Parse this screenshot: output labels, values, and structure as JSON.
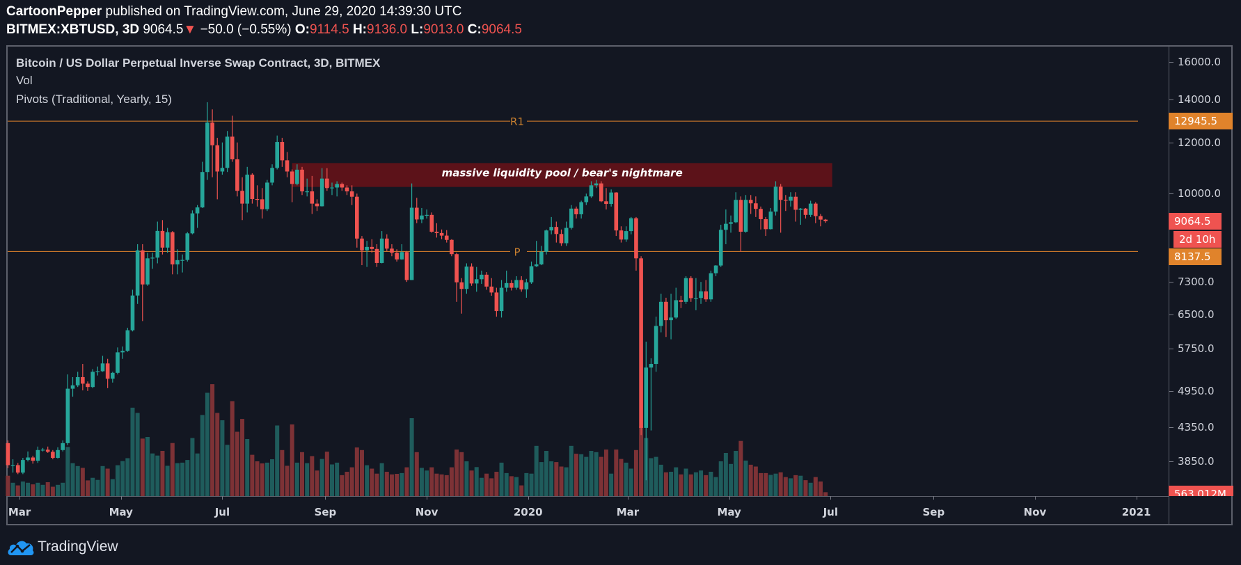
{
  "header": {
    "author": "CartoonPepper",
    "published": "published on TradingView.com, June 29, 2020 14:39:30 UTC",
    "symbol": "BITMEX:XBTUSD, 3D",
    "last": "9064.5",
    "change_arrow": "▼",
    "change": "−50.0 (−0.55%)",
    "o_label": "O:",
    "o": "9114.5",
    "h_label": "H:",
    "h": "9136.0",
    "l_label": "L:",
    "l": "9013.0",
    "c_label": "C:",
    "c": "9064.5"
  },
  "legend": {
    "title": "Bitcoin / US Dollar Perpetual Inverse Swap Contract, 3D, BITMEX",
    "vol": "Vol",
    "pivots": "Pivots (Traditional, Yearly, 15)"
  },
  "badges": {
    "r1": "12945.5",
    "last": "9064.5",
    "countdown": "2d 10h",
    "p": "8137.5",
    "volume": "563.012M"
  },
  "footer": {
    "brand": "TradingView"
  },
  "colors": {
    "background": "#131722",
    "up": "#26a69a",
    "down": "#ef5350",
    "up_volume": "#1f5c5c",
    "down_volume": "#7d3236",
    "pivot": "#e0832b",
    "zone": "#5c1219",
    "logo": "#2196f3"
  },
  "chart_data": {
    "type": "candlestick",
    "interval": "3D",
    "start": "2019-02-22",
    "y_scale": "log",
    "ylim": [
      3500,
      16500
    ],
    "y_ticks": [
      "16000.0",
      "14000.0",
      "12000.0",
      "10000.0",
      "7300.0",
      "6500.0",
      "5750.0",
      "4950.0",
      "4350.0",
      "3850.0"
    ],
    "x_ticks": [
      {
        "label": "Mar",
        "date": "2019-03-01"
      },
      {
        "label": "May",
        "date": "2019-05-01"
      },
      {
        "label": "Jul",
        "date": "2019-07-01"
      },
      {
        "label": "Sep",
        "date": "2019-09-01"
      },
      {
        "label": "Nov",
        "date": "2019-11-01"
      },
      {
        "label": "2020",
        "date": "2020-01-01"
      },
      {
        "label": "Mar",
        "date": "2020-03-01"
      },
      {
        "label": "May",
        "date": "2020-05-01"
      },
      {
        "label": "Jul",
        "date": "2020-07-01"
      },
      {
        "label": "Sep",
        "date": "2020-09-01"
      },
      {
        "label": "Nov",
        "date": "2020-11-01"
      },
      {
        "label": "2021",
        "date": "2021-01-01"
      }
    ],
    "first_open": 4110,
    "close": [
      3800,
      3800,
      3700,
      3870,
      3905,
      3860,
      4010,
      4015,
      3985,
      3900,
      4010,
      4110,
      4990,
      5050,
      5200,
      5080,
      5020,
      5300,
      5310,
      5460,
      5170,
      5280,
      5680,
      5710,
      6145,
      6955,
      8170,
      7235,
      7940,
      7960,
      8755,
      8250,
      8715,
      7770,
      7890,
      7895,
      8680,
      9320,
      9520,
      10800,
      12880,
      11880,
      10820,
      10960,
      12250,
      11300,
      10100,
      9650,
      10700,
      9810,
      9800,
      9460,
      10400,
      10960,
      12020,
      11260,
      10820,
      10350,
      10890,
      10080,
      10080,
      9650,
      9560,
      10550,
      10200,
      10220,
      10350,
      10220,
      10080,
      9890,
      8520,
      8170,
      8270,
      8210,
      7810,
      8520,
      8220,
      8100,
      7910,
      8120,
      7350,
      9510,
      9120,
      9250,
      9270,
      8730,
      8690,
      8610,
      8480,
      8060,
      7290,
      7120,
      7710,
      7260,
      7370,
      7490,
      7180,
      7030,
      6580,
      7150,
      7270,
      7150,
      7350,
      7110,
      7290,
      7720,
      7770,
      8130,
      8770,
      8880,
      8660,
      8380,
      8850,
      9480,
      9290,
      9700,
      9900,
      10300,
      10370,
      9730,
      9640,
      10040,
      8770,
      8490,
      8750,
      9160,
      7940,
      4340,
      5380,
      5450,
      6240,
      6800,
      6370,
      6430,
      6840,
      6800,
      7400,
      6890,
      6895,
      7060,
      6860,
      7530,
      7740,
      8790,
      8980,
      9030,
      9780,
      8730,
      9780,
      9660,
      9470,
      9130,
      8810,
      9380,
      10250,
      9780,
      9750,
      9890,
      9440,
      9480,
      9270,
      9650,
      9230,
      9114.5,
      9064.5
    ],
    "high": [
      4150,
      3880,
      3830,
      3900,
      3990,
      3930,
      4060,
      4040,
      4060,
      4010,
      4050,
      4150,
      5250,
      5200,
      5300,
      5450,
      5120,
      5350,
      5400,
      5610,
      5550,
      5300,
      5780,
      5800,
      6200,
      7100,
      8350,
      8350,
      8100,
      8100,
      9050,
      9100,
      8850,
      8750,
      8200,
      8050,
      8720,
      9420,
      9600,
      11200,
      13850,
      13500,
      12200,
      12000,
      12500,
      13200,
      12000,
      10600,
      11000,
      10750,
      10300,
      10200,
      10500,
      11100,
      12300,
      12200,
      11600,
      10900,
      11100,
      11000,
      10550,
      10650,
      9800,
      10950,
      10950,
      10400,
      10450,
      10400,
      10300,
      10300,
      10000,
      8600,
      8450,
      8500,
      8350,
      8750,
      8650,
      8350,
      8200,
      8350,
      8150,
      10370,
      9850,
      9500,
      9450,
      9350,
      9000,
      8800,
      8780,
      8500,
      8100,
      7400,
      7800,
      7800,
      7700,
      7600,
      7560,
      7400,
      7150,
      7350,
      7600,
      7350,
      7450,
      7450,
      7380,
      7850,
      8450,
      8300,
      8800,
      9200,
      9050,
      8800,
      9050,
      9600,
      9550,
      9750,
      10000,
      10450,
      10500,
      10450,
      10200,
      10150,
      10050,
      8900,
      8900,
      9200,
      9200,
      8000,
      5900,
      5560,
      6450,
      7000,
      6900,
      7000,
      7150,
      6950,
      7450,
      7450,
      7400,
      7300,
      7350,
      7600,
      7750,
      8950,
      9450,
      9250,
      10050,
      9900,
      9950,
      9950,
      9900,
      9550,
      9200,
      9500,
      10450,
      10350,
      9950,
      10050,
      10050,
      9500,
      9500,
      9750,
      9700,
      9300,
      9136
    ],
    "low": [
      3760,
      3700,
      3680,
      3680,
      3850,
      3820,
      3830,
      3990,
      3970,
      3880,
      3890,
      3990,
      4080,
      4850,
      5020,
      4960,
      4950,
      5000,
      5230,
      5300,
      5000,
      5100,
      5250,
      5550,
      5690,
      6120,
      6750,
      6350,
      7200,
      7650,
      7800,
      8050,
      8100,
      7500,
      7500,
      7550,
      7850,
      8650,
      8850,
      9500,
      10500,
      10600,
      9800,
      10700,
      10800,
      11200,
      9900,
      9100,
      9350,
      9650,
      9550,
      9150,
      9400,
      10300,
      10900,
      11000,
      10600,
      9700,
      10300,
      9950,
      9900,
      9300,
      9400,
      9550,
      10100,
      9950,
      9900,
      10100,
      9950,
      9600,
      8250,
      7750,
      7700,
      8100,
      7700,
      7800,
      8150,
      8000,
      7850,
      7900,
      7300,
      7350,
      9000,
      9000,
      9150,
      8700,
      8550,
      8500,
      8400,
      8000,
      6800,
      6520,
      7000,
      7200,
      7050,
      7250,
      7100,
      6950,
      6450,
      6430,
      7050,
      7080,
      7100,
      7050,
      6900,
      7250,
      7700,
      7750,
      8050,
      8650,
      8400,
      8300,
      8300,
      8800,
      9150,
      9150,
      9600,
      9850,
      10200,
      9700,
      9450,
      9550,
      8600,
      8400,
      8420,
      8650,
      7600,
      4230,
      3600,
      4300,
      5300,
      6100,
      6000,
      5950,
      6400,
      6650,
      6750,
      6800,
      6600,
      6750,
      6800,
      6800,
      7450,
      7700,
      8350,
      8700,
      9000,
      8130,
      8700,
      9300,
      9200,
      8800,
      8600,
      8800,
      9250,
      8700,
      9400,
      9550,
      9050,
      8950,
      9150,
      9200,
      9000,
      8900,
      9013
    ],
    "volume_unit": "M",
    "volume": [
      2930,
      1920,
      1540,
      2100,
      1920,
      1690,
      1920,
      1620,
      2000,
      1350,
      1620,
      1920,
      7070,
      4740,
      4320,
      4060,
      2260,
      2630,
      2330,
      4320,
      3950,
      2440,
      4440,
      5040,
      5450,
      12710,
      11960,
      8270,
      8500,
      6130,
      5830,
      6500,
      4360,
      7630,
      4740,
      4810,
      5190,
      8350,
      6130,
      11660,
      14850,
      16090,
      11960,
      10900,
      7370,
      13650,
      9250,
      11090,
      8200,
      5940,
      5000,
      4700,
      4810,
      5300,
      10150,
      6620,
      4360,
      10300,
      4810,
      6320,
      4740,
      5750,
      3680,
      5340,
      6390,
      4550,
      4810,
      3010,
      3500,
      4140,
      6990,
      6620,
      4440,
      3950,
      3230,
      4740,
      3500,
      3120,
      3200,
      3310,
      4140,
      11200,
      6320,
      4060,
      3680,
      4140,
      3230,
      3120,
      3010,
      4140,
      6690,
      6320,
      5000,
      3680,
      4170,
      2630,
      3230,
      2560,
      3500,
      4810,
      3310,
      2860,
      2740,
      1540,
      3310,
      3230,
      7220,
      4890,
      6500,
      5000,
      4890,
      4250,
      4140,
      7220,
      6090,
      6020,
      5640,
      6500,
      6320,
      5640,
      6690,
      3230,
      6690,
      5340,
      4810,
      3950,
      6620,
      10000,
      8350,
      5450,
      5640,
      4510,
      3420,
      3500,
      4140,
      3120,
      3950,
      3120,
      3420,
      3680,
      3010,
      3500,
      2740,
      5000,
      6200,
      4620,
      6500,
      7930,
      5110,
      4510,
      4250,
      3310,
      3310,
      3050,
      3230,
      3420,
      2740,
      2560,
      3010,
      2930,
      2290,
      1920,
      2740,
      2100,
      563.012
    ],
    "pivots": [
      {
        "label": "R1",
        "value": 12945.5
      },
      {
        "label": "P",
        "value": 8137.5
      }
    ],
    "zone": {
      "text": "massive liquidity pool / bear's nightmare",
      "price_top": 11150,
      "price_bottom": 10240,
      "from": "2019-08-12",
      "to": "2020-07-02"
    }
  }
}
